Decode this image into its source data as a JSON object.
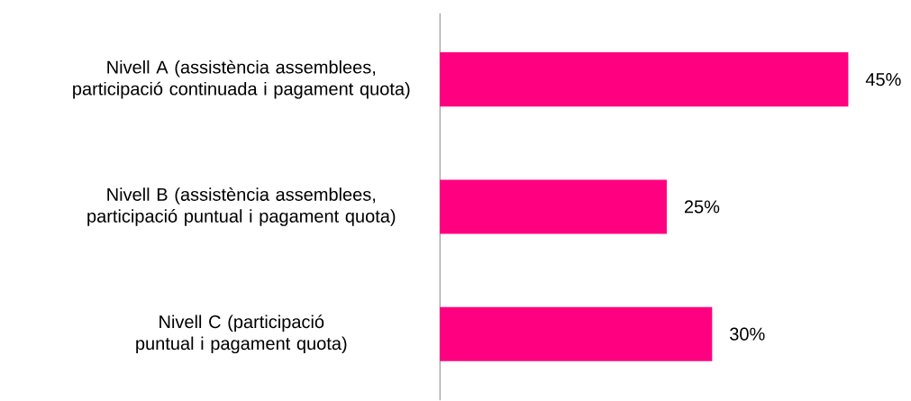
{
  "chart_data": {
    "type": "bar",
    "orientation": "horizontal",
    "categories": [
      "Nivell A (assistència assemblees, participació continuada i pagament quota)",
      "Nivell B (assistència assemblees, participació puntual i pagament quota)",
      "Nivell C (participació puntual  i pagament quota)"
    ],
    "values": [
      45,
      25,
      30
    ],
    "value_labels": [
      "45%",
      "25%",
      "30%"
    ],
    "color": "#ff0080"
  }
}
